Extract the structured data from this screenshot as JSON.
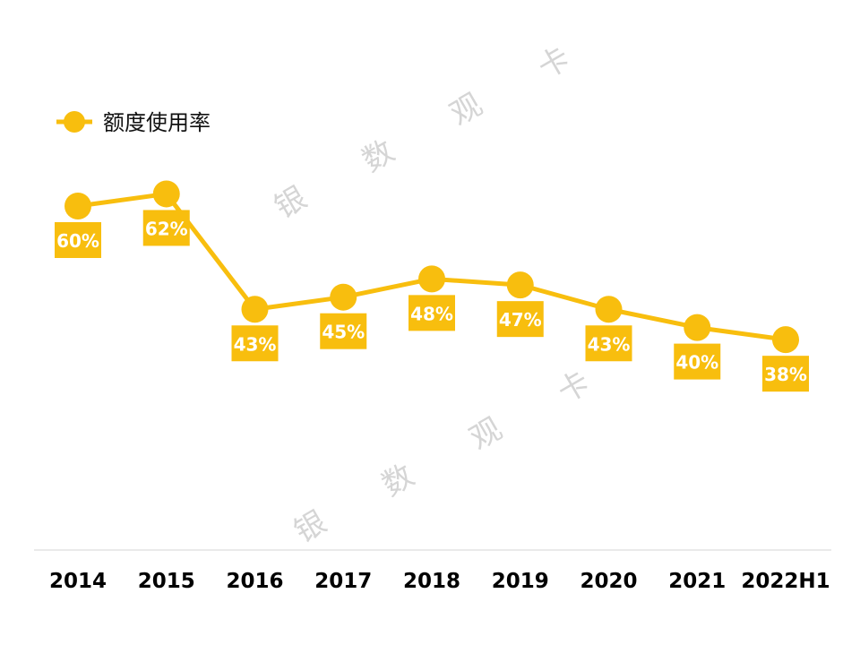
{
  "chart_data": {
    "type": "line",
    "title": "",
    "xlabel": "",
    "ylabel": "",
    "categories": [
      "2014",
      "2015",
      "2016",
      "2017",
      "2018",
      "2019",
      "2020",
      "2021",
      "2022H1"
    ],
    "series": [
      {
        "name": "额度使用率",
        "values": [
          60,
          62,
          43,
          45,
          48,
          47,
          43,
          40,
          38
        ],
        "labels": [
          "60%",
          "62%",
          "43%",
          "45%",
          "48%",
          "47%",
          "43%",
          "40%",
          "38%"
        ],
        "label_side": [
          "below",
          "below",
          "below",
          "below",
          "above",
          "below",
          "below",
          "below",
          "below"
        ]
      }
    ],
    "ylim": [
      0,
      100
    ],
    "grid": false,
    "legend": "top-left"
  },
  "colors": {
    "series": "#F8BE0E",
    "baseline": "#d4d4d4",
    "watermark": "#c8c8c8"
  },
  "watermark": {
    "chars": [
      "银",
      "数",
      "观",
      "卡"
    ]
  }
}
